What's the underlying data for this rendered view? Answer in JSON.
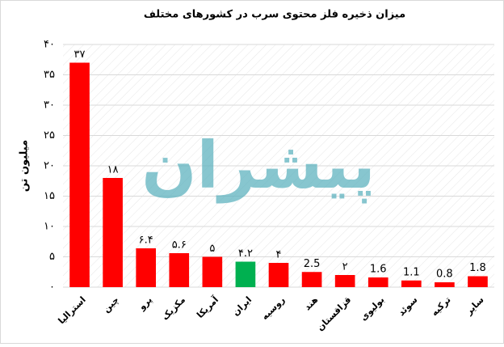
{
  "chart_data": {
    "type": "bar",
    "title": "میزان ذخیره فلز محتوی سرب در کشورهای مختلف",
    "y_label": "میلیون تن",
    "watermark": "پیشران",
    "categories": [
      "استرالیا",
      "چین",
      "پرو",
      "مکزیک",
      "آمریکا",
      "ایران",
      "روسیه",
      "هند",
      "قزاقستان",
      "بولیوی",
      "سوئد",
      "ترکیه",
      "سایر"
    ],
    "values": [
      37,
      18,
      6.4,
      5.6,
      5,
      4.2,
      4,
      2.5,
      2,
      1.6,
      1.1,
      0.8,
      1.8
    ],
    "value_labels": [
      "۳۷",
      "۱۸",
      "۶.۴",
      "۵.۶",
      "۵",
      "۴.۲",
      "۴",
      "2.5",
      "۲",
      "1.6",
      "1.1",
      "0.8",
      "1.8"
    ],
    "colors": [
      "#ff0000",
      "#ff0000",
      "#ff0000",
      "#ff0000",
      "#ff0000",
      "#00b050",
      "#ff0000",
      "#ff0000",
      "#ff0000",
      "#ff0000",
      "#ff0000",
      "#ff0000",
      "#ff0000"
    ],
    "ylim": [
      0,
      40
    ],
    "yticks": [
      {
        "value": 0,
        "label": "۰"
      },
      {
        "value": 5,
        "label": "۵"
      },
      {
        "value": 10,
        "label": "۱۰"
      },
      {
        "value": 15,
        "label": "۱۵"
      },
      {
        "value": 20,
        "label": "۲۰"
      },
      {
        "value": 25,
        "label": "۲۵"
      },
      {
        "value": 30,
        "label": "۳۰"
      },
      {
        "value": 35,
        "label": "۳۵"
      },
      {
        "value": 40,
        "label": "۴۰"
      }
    ],
    "grid": true
  }
}
